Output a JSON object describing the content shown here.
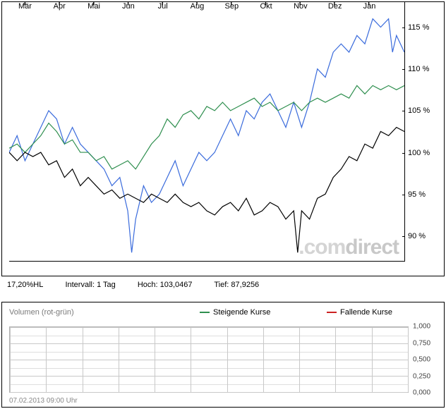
{
  "chart": {
    "type": "line",
    "background_color": "#ffffff",
    "border_color": "#000000",
    "watermark_prefix": ".com",
    "watermark_suffix": "direct",
    "watermark_color_prefix": "#d4d4d4",
    "watermark_color_suffix": "#c0c0c0",
    "x_labels": [
      "Mär",
      "Apr",
      "Mai",
      "Jun",
      "Jul",
      "Aug",
      "Sep",
      "Okt",
      "Nov",
      "Dez",
      "Jan"
    ],
    "x_positions_pct": [
      4,
      12.7,
      21.4,
      30.1,
      38.8,
      47.5,
      56.2,
      64.9,
      73.6,
      82.3,
      91.0
    ],
    "y_labels": [
      "115 %",
      "110 %",
      "105 %",
      "100 %",
      "95 %",
      "90 %"
    ],
    "y_values": [
      115,
      110,
      105,
      100,
      95,
      90
    ],
    "y_min": 87,
    "y_max": 118,
    "series": [
      {
        "name": "series-blue",
        "color": "#3a6bdc",
        "width": 1.2,
        "points": [
          [
            0,
            100
          ],
          [
            2,
            102
          ],
          [
            4,
            99
          ],
          [
            6,
            101
          ],
          [
            8,
            103
          ],
          [
            10,
            105
          ],
          [
            12,
            104
          ],
          [
            14,
            101
          ],
          [
            16,
            103
          ],
          [
            18,
            101
          ],
          [
            20,
            100
          ],
          [
            22,
            99
          ],
          [
            24,
            98
          ],
          [
            26,
            96
          ],
          [
            28,
            97
          ],
          [
            30,
            93
          ],
          [
            31,
            88
          ],
          [
            32,
            92
          ],
          [
            34,
            96
          ],
          [
            36,
            94
          ],
          [
            38,
            95
          ],
          [
            40,
            97
          ],
          [
            42,
            99
          ],
          [
            44,
            96
          ],
          [
            46,
            98
          ],
          [
            48,
            100
          ],
          [
            50,
            99
          ],
          [
            52,
            100
          ],
          [
            54,
            102
          ],
          [
            56,
            104
          ],
          [
            58,
            102
          ],
          [
            60,
            105
          ],
          [
            62,
            104
          ],
          [
            64,
            106
          ],
          [
            66,
            107
          ],
          [
            68,
            105
          ],
          [
            70,
            103
          ],
          [
            72,
            106
          ],
          [
            74,
            103
          ],
          [
            76,
            106
          ],
          [
            78,
            110
          ],
          [
            80,
            109
          ],
          [
            82,
            112
          ],
          [
            84,
            113
          ],
          [
            86,
            112
          ],
          [
            88,
            114
          ],
          [
            90,
            113
          ],
          [
            92,
            116
          ],
          [
            94,
            115
          ],
          [
            96,
            116
          ],
          [
            97,
            112
          ],
          [
            98,
            114
          ],
          [
            100,
            112
          ]
        ]
      },
      {
        "name": "series-green",
        "color": "#2f8f4f",
        "width": 1.2,
        "points": [
          [
            0,
            100.5
          ],
          [
            2,
            101
          ],
          [
            4,
            100
          ],
          [
            6,
            101
          ],
          [
            8,
            102
          ],
          [
            10,
            103.5
          ],
          [
            12,
            102.5
          ],
          [
            14,
            101
          ],
          [
            16,
            101.5
          ],
          [
            18,
            100
          ],
          [
            20,
            100
          ],
          [
            22,
            99
          ],
          [
            24,
            99.5
          ],
          [
            26,
            98
          ],
          [
            28,
            98.5
          ],
          [
            30,
            99
          ],
          [
            32,
            98
          ],
          [
            34,
            99.5
          ],
          [
            36,
            101
          ],
          [
            38,
            102
          ],
          [
            40,
            104
          ],
          [
            42,
            103
          ],
          [
            44,
            104.5
          ],
          [
            46,
            105
          ],
          [
            48,
            104
          ],
          [
            50,
            105.5
          ],
          [
            52,
            105
          ],
          [
            54,
            106
          ],
          [
            56,
            105
          ],
          [
            58,
            105.5
          ],
          [
            60,
            106
          ],
          [
            62,
            106.5
          ],
          [
            64,
            105.5
          ],
          [
            66,
            106
          ],
          [
            68,
            105
          ],
          [
            70,
            105.5
          ],
          [
            72,
            106
          ],
          [
            74,
            105
          ],
          [
            76,
            106
          ],
          [
            78,
            106.5
          ],
          [
            80,
            106
          ],
          [
            82,
            106.5
          ],
          [
            84,
            107
          ],
          [
            86,
            106.5
          ],
          [
            88,
            108
          ],
          [
            90,
            107
          ],
          [
            92,
            108
          ],
          [
            94,
            107.5
          ],
          [
            96,
            108
          ],
          [
            98,
            107.5
          ],
          [
            100,
            108
          ]
        ]
      },
      {
        "name": "series-black",
        "color": "#000000",
        "width": 1.2,
        "points": [
          [
            0,
            100
          ],
          [
            2,
            99
          ],
          [
            4,
            100
          ],
          [
            6,
            99.5
          ],
          [
            8,
            100
          ],
          [
            10,
            98.5
          ],
          [
            12,
            99
          ],
          [
            14,
            97
          ],
          [
            16,
            98
          ],
          [
            18,
            96
          ],
          [
            20,
            97
          ],
          [
            22,
            96
          ],
          [
            24,
            95
          ],
          [
            26,
            95.5
          ],
          [
            28,
            94.5
          ],
          [
            30,
            95
          ],
          [
            32,
            94.5
          ],
          [
            34,
            94
          ],
          [
            36,
            95
          ],
          [
            38,
            94.5
          ],
          [
            40,
            94
          ],
          [
            42,
            95
          ],
          [
            44,
            94
          ],
          [
            46,
            93.5
          ],
          [
            48,
            94
          ],
          [
            50,
            93
          ],
          [
            52,
            92.5
          ],
          [
            54,
            93.5
          ],
          [
            56,
            94
          ],
          [
            58,
            93
          ],
          [
            60,
            94.5
          ],
          [
            62,
            92.5
          ],
          [
            64,
            93
          ],
          [
            66,
            94
          ],
          [
            68,
            93.5
          ],
          [
            70,
            92
          ],
          [
            72,
            93
          ],
          [
            73,
            88
          ],
          [
            74,
            93
          ],
          [
            76,
            92
          ],
          [
            78,
            94.5
          ],
          [
            80,
            95
          ],
          [
            82,
            97
          ],
          [
            84,
            98
          ],
          [
            86,
            99.5
          ],
          [
            88,
            99
          ],
          [
            90,
            101
          ],
          [
            92,
            100.5
          ],
          [
            94,
            102.5
          ],
          [
            96,
            102
          ],
          [
            98,
            103
          ],
          [
            100,
            102.5
          ]
        ]
      }
    ]
  },
  "info_bar": {
    "pct_hl": "17,20%HL",
    "interval_label": "Intervall: 1 Tag",
    "high_label": "Hoch: 103,0467",
    "low_label": "Tief: 87,9256"
  },
  "volume": {
    "title": "Volumen (rot-grün)",
    "legend_up_label": "Steigende Kurse",
    "legend_up_color": "#2f8f4f",
    "legend_down_label": "Fallende Kurse",
    "legend_down_color": "#cc2222",
    "y_labels": [
      "1,000",
      "0,750",
      "0,500",
      "0,250",
      "0,000"
    ],
    "grid_h_pct": [
      0,
      25,
      50,
      75,
      100
    ],
    "grid_v_count": 11,
    "footer": "07.02.2013 09:00 Uhr"
  }
}
